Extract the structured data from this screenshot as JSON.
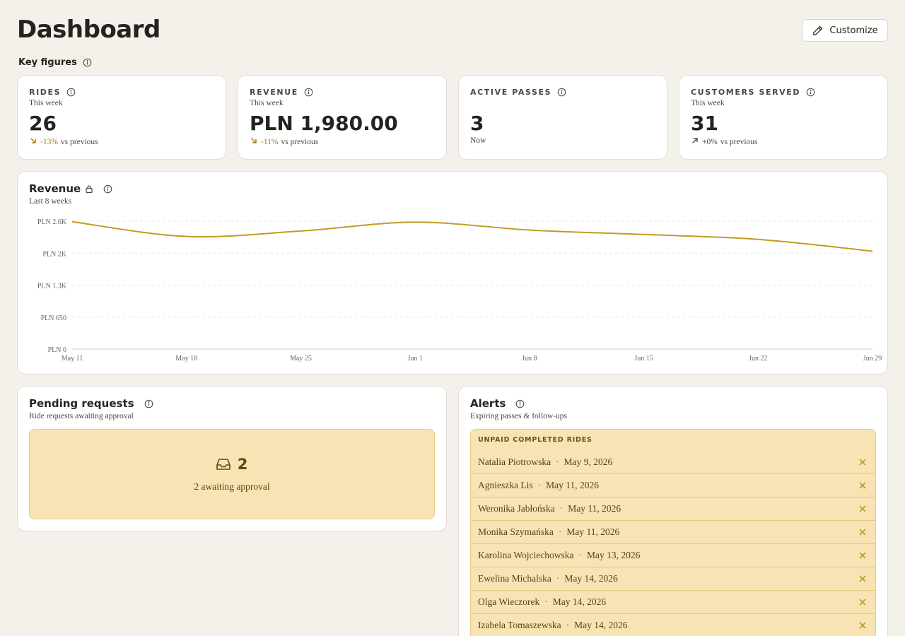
{
  "header": {
    "title": "Dashboard",
    "customize_label": "Customize"
  },
  "key_figures": {
    "label": "Key figures",
    "cards": [
      {
        "label": "RIDES",
        "sub": "This week",
        "value": "26",
        "trend": "-13%",
        "trend_suffix": "vs previous",
        "trend_dir": "down"
      },
      {
        "label": "REVENUE",
        "sub": "This week",
        "value": "PLN 1,980.00",
        "trend": "-11%",
        "trend_suffix": "vs previous",
        "trend_dir": "down"
      },
      {
        "label": "ACTIVE PASSES",
        "sub": "",
        "value": "3",
        "note": "Now"
      },
      {
        "label": "CUSTOMERS SERVED",
        "sub": "This week",
        "value": "31",
        "trend": "+0%",
        "trend_suffix": "vs previous",
        "trend_dir": "up"
      }
    ]
  },
  "revenue_chart": {
    "title": "Revenue",
    "subtitle": "Last 8 weeks"
  },
  "chart_data": {
    "type": "line",
    "title": "Revenue",
    "subtitle": "Last 8 weeks",
    "x": [
      "May 11",
      "May 18",
      "May 25",
      "Jun 1",
      "Jun 8",
      "Jun 15",
      "Jun 22",
      "Jun 29"
    ],
    "y_ticks": [
      "PLN 0",
      "PLN 650",
      "PLN 1.3K",
      "PLN 2K",
      "PLN 2.6K"
    ],
    "y_tick_values": [
      0,
      650,
      1300,
      1950,
      2600
    ],
    "ylim": [
      0,
      2600
    ],
    "series": [
      {
        "values": [
          2590,
          2290,
          2400,
          2580,
          2420,
          2330,
          2230,
          1990
        ],
        "color": "#c49a22"
      }
    ],
    "grid": true
  },
  "pending": {
    "title": "Pending requests",
    "subtitle": "Ride requests awaiting approval",
    "count": "2",
    "text": "2 awaiting approval"
  },
  "alerts": {
    "title": "Alerts",
    "subtitle": "Expiring passes & follow-ups",
    "section_title": "UNPAID COMPLETED RIDES",
    "items": [
      {
        "name": "Natalia Piotrowska",
        "date": "May 9, 2026"
      },
      {
        "name": "Agnieszka Lis",
        "date": "May 11, 2026"
      },
      {
        "name": "Weronika Jabłońska",
        "date": "May 11, 2026"
      },
      {
        "name": "Monika Szymańska",
        "date": "May 11, 2026"
      },
      {
        "name": "Karolina Wojciechowska",
        "date": "May 13, 2026"
      },
      {
        "name": "Ewelina Michalska",
        "date": "May 14, 2026"
      },
      {
        "name": "Olga Wieczorek",
        "date": "May 14, 2026"
      },
      {
        "name": "Izabela Tomaszewska",
        "date": "May 14, 2026"
      }
    ]
  },
  "colors": {
    "accent": "#c49a22",
    "alert_bg": "#f7e3b3",
    "page_bg": "#f4f1ea",
    "negative_trend": "#a77c12"
  },
  "icons": {
    "customize": "pencil-icon",
    "info": "info-icon",
    "lock": "lock-icon",
    "inbox": "inbox-icon",
    "dismiss": "close-icon",
    "trend_down": "arrow-down-right-icon",
    "trend_up": "arrow-up-right-icon"
  }
}
